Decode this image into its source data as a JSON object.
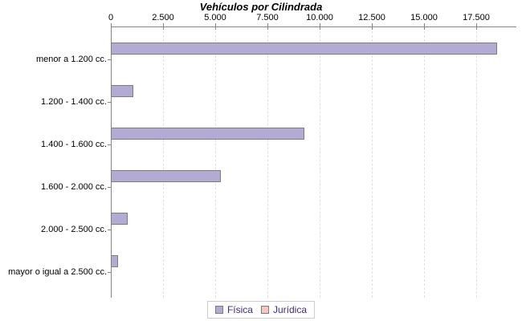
{
  "chart_data": {
    "type": "bar",
    "orientation": "horizontal",
    "title": "Vehículos por Cilindrada",
    "categories": [
      "menor a 1.200 cc.",
      "1.200 - 1.400 cc.",
      "1.400 - 1.600 cc.",
      "1.600 - 2.000 cc.",
      "2.000 - 2.500 cc.",
      "mayor o igual a 2.500 cc."
    ],
    "series": [
      {
        "name": "Física",
        "color": "#b4abd5",
        "values": [
          18500,
          1070,
          9280,
          5250,
          810,
          330
        ]
      },
      {
        "name": "Jurídica",
        "color": "#f6c5c4",
        "values": [
          0,
          0,
          0,
          0,
          0,
          0
        ]
      }
    ],
    "x_tick_labels": [
      "0",
      "2.500",
      "5.000",
      "7.500",
      "10.000",
      "12.500",
      "15.000",
      "17.500"
    ],
    "x_tick_values": [
      0,
      2500,
      5000,
      7500,
      10000,
      12500,
      15000,
      17500
    ],
    "xlim": [
      0,
      19400
    ],
    "grid": "vertical-dashed",
    "legend_position": "bottom",
    "axis_color": "#848484",
    "gridline_color": "#e0e0e0",
    "bar_border_color": "#7c7c7c",
    "legend_text_color": "#3d2b85"
  }
}
